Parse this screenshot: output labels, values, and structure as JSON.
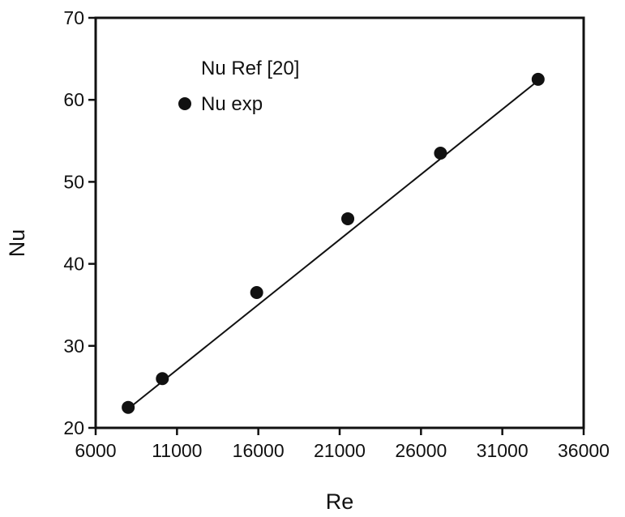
{
  "chart_data": {
    "type": "scatter",
    "title": "",
    "xlabel": "Re",
    "ylabel": "Nu",
    "xlim": [
      6000,
      36000
    ],
    "ylim": [
      20,
      70
    ],
    "xticks": [
      6000,
      11000,
      16000,
      21000,
      26000,
      31000,
      36000
    ],
    "yticks": [
      20,
      30,
      40,
      50,
      60,
      70
    ],
    "xtick_labels": [
      "6000",
      "11000",
      "16000",
      "21000",
      "26000",
      "31000",
      "36000"
    ],
    "ytick_labels": [
      "20",
      "30",
      "40",
      "50",
      "60",
      "70"
    ],
    "grid": false,
    "legend_position": "top-left",
    "series": [
      {
        "name": "Nu Ref [20]",
        "kind": "line",
        "color": "#111111",
        "x": [
          7800,
          33300
        ],
        "y": [
          22.0,
          62.5
        ]
      },
      {
        "name": "Nu exp",
        "kind": "scatter",
        "color": "#111111",
        "x": [
          8000,
          10100,
          15900,
          21500,
          27200,
          33200
        ],
        "y": [
          22.5,
          26.0,
          36.5,
          45.5,
          53.5,
          62.5
        ]
      }
    ]
  }
}
